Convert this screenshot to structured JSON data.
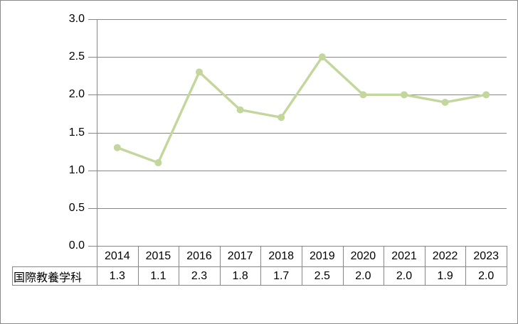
{
  "window": {
    "background": "#ffffff",
    "border_color": "#8a8a8a"
  },
  "chart_data": {
    "type": "line",
    "title": "",
    "xlabel": "",
    "ylabel": "",
    "categories": [
      "2014",
      "2015",
      "2016",
      "2017",
      "2018",
      "2019",
      "2020",
      "2021",
      "2022",
      "2023"
    ],
    "series": [
      {
        "name": "国際教養学科",
        "values": [
          1.3,
          1.1,
          2.3,
          1.8,
          1.7,
          2.5,
          2.0,
          2.0,
          1.9,
          2.0
        ],
        "values_display": [
          "1.3",
          "1.1",
          "2.3",
          "1.8",
          "1.7",
          "2.5",
          "2.0",
          "2.0",
          "1.9",
          "2.0"
        ]
      }
    ],
    "ylim": [
      0.0,
      3.0
    ],
    "yticks": [
      0.0,
      0.5,
      1.0,
      1.5,
      2.0,
      2.5,
      3.0
    ],
    "yticklabels": [
      "0.0",
      "0.5",
      "1.0",
      "1.5",
      "2.0",
      "2.5",
      "3.0"
    ],
    "grid": true,
    "legend_position": "none",
    "data_table_shown": true,
    "marker": "circle",
    "colors": {
      "line": "#c3d69b",
      "marker": "#c3d69b",
      "gridline": "#878787",
      "axis": "#878787",
      "table_border": "#878787",
      "text": "#000000"
    }
  }
}
